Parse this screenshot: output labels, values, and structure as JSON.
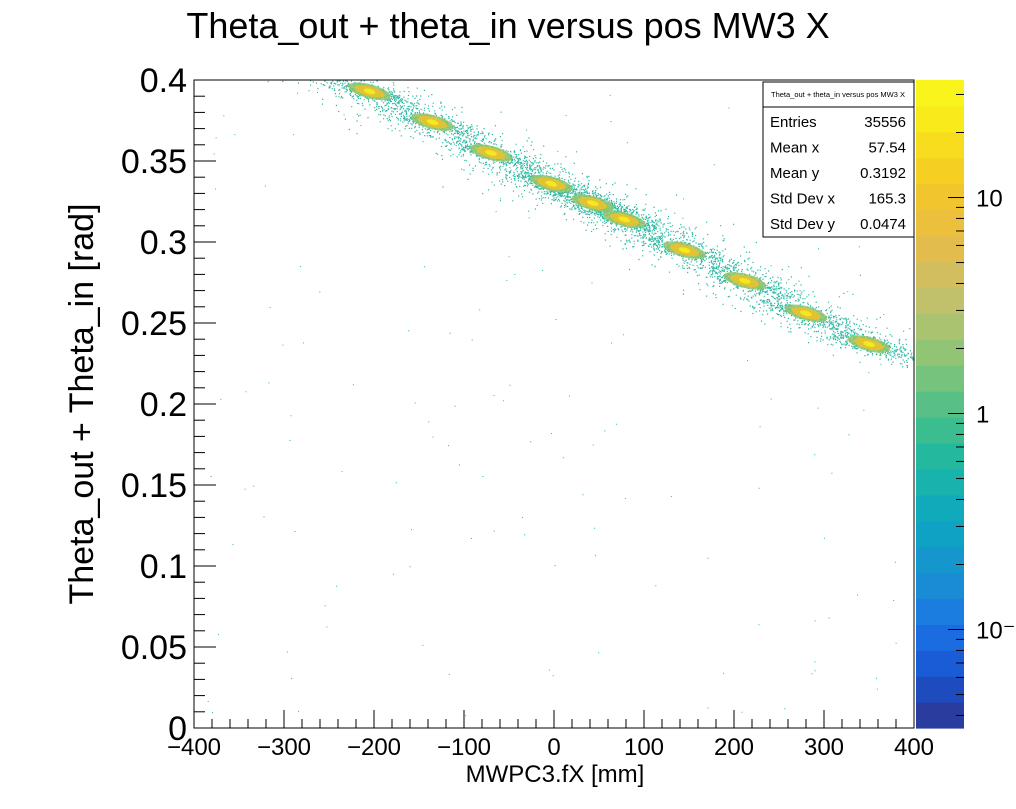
{
  "chart_data": {
    "type": "heatmap",
    "title": "Theta_out + theta_in versus pos MW3 X",
    "xlabel": "MWPC3.fX [mm]",
    "ylabel": "Theta_out + Theta_in [rad]",
    "xlim": [
      -400,
      400
    ],
    "ylim": [
      0,
      0.4
    ],
    "x_ticks": [
      -400,
      -300,
      -200,
      -100,
      0,
      100,
      200,
      300,
      400
    ],
    "x_tick_labels": [
      "−400",
      "−300",
      "−200",
      "−100",
      "0",
      "100",
      "200",
      "300",
      "400"
    ],
    "y_ticks": [
      0,
      0.05,
      0.1,
      0.15,
      0.2,
      0.25,
      0.3,
      0.35,
      0.4
    ],
    "y_tick_labels": [
      "0",
      "0.05",
      "0.1",
      "0.15",
      "0.2",
      "0.25",
      "0.3",
      "0.35",
      "0.4"
    ],
    "clusters": [
      {
        "x": -205,
        "y": 0.393
      },
      {
        "x": -135,
        "y": 0.374
      },
      {
        "x": -70,
        "y": 0.355
      },
      {
        "x": -3,
        "y": 0.336
      },
      {
        "x": 43,
        "y": 0.324
      },
      {
        "x": 78,
        "y": 0.314
      },
      {
        "x": 145,
        "y": 0.295
      },
      {
        "x": 212,
        "y": 0.276
      },
      {
        "x": 280,
        "y": 0.256
      },
      {
        "x": 350,
        "y": 0.237
      }
    ],
    "colorbar": {
      "scale": "log",
      "tick_labels": [
        "10",
        "1",
        "10⁻¹"
      ],
      "tick_values": [
        10,
        1,
        0.1
      ]
    },
    "stats": {
      "title": "Theta_out + theta_in versus pos MW3 X",
      "rows": [
        {
          "label": "Entries",
          "value": "35556"
        },
        {
          "label": "Mean x",
          "value": "57.54"
        },
        {
          "label": "Mean y",
          "value": "0.3192"
        },
        {
          "label": "Std Dev x",
          "value": "165.3"
        },
        {
          "label": "Std Dev y",
          "value": "0.0474"
        }
      ]
    },
    "grid": false,
    "legend": "top-right"
  }
}
